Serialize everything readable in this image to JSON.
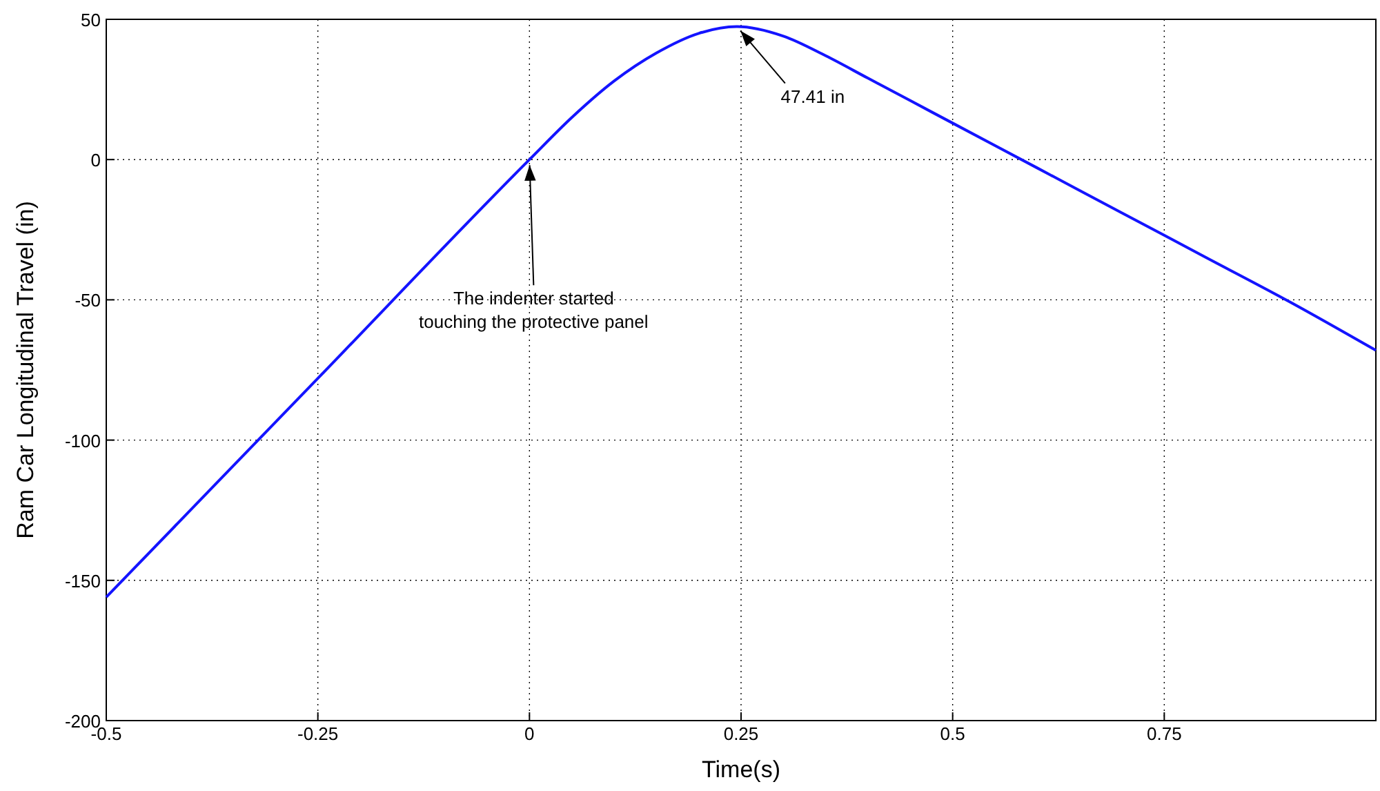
{
  "chart_data": {
    "type": "line",
    "xlabel": "Time(s)",
    "ylabel": "Ram Car Longitudinal Travel (in)",
    "xlim": [
      -0.5,
      1
    ],
    "xticks": [
      -0.5,
      -0.25,
      0,
      0.25,
      0.5,
      0.75
    ],
    "ylim": [
      -200,
      50
    ],
    "yticks": [
      -200,
      -150,
      -100,
      -50,
      0,
      50
    ],
    "grid": true,
    "line_style": "solid",
    "series": [
      {
        "color": "#1414ff",
        "x": [
          -0.5,
          -0.25,
          0,
          0.05,
          0.1,
          0.15,
          0.2,
          0.245,
          0.3,
          0.35,
          0.4,
          0.45,
          0.5,
          0.6,
          0.7,
          0.8,
          0.9,
          1.0
        ],
        "values": [
          -156,
          -78,
          0,
          15,
          28,
          38,
          45,
          47.41,
          44,
          37,
          29,
          21,
          13,
          -3,
          -19,
          -35,
          -51,
          -68
        ]
      }
    ],
    "annotations": [
      {
        "text": "47.41 in",
        "x": 0.245,
        "y": 47.41
      },
      {
        "text": "The indenter started\ntouching the protective panel",
        "x": 0,
        "y": 0
      }
    ]
  }
}
